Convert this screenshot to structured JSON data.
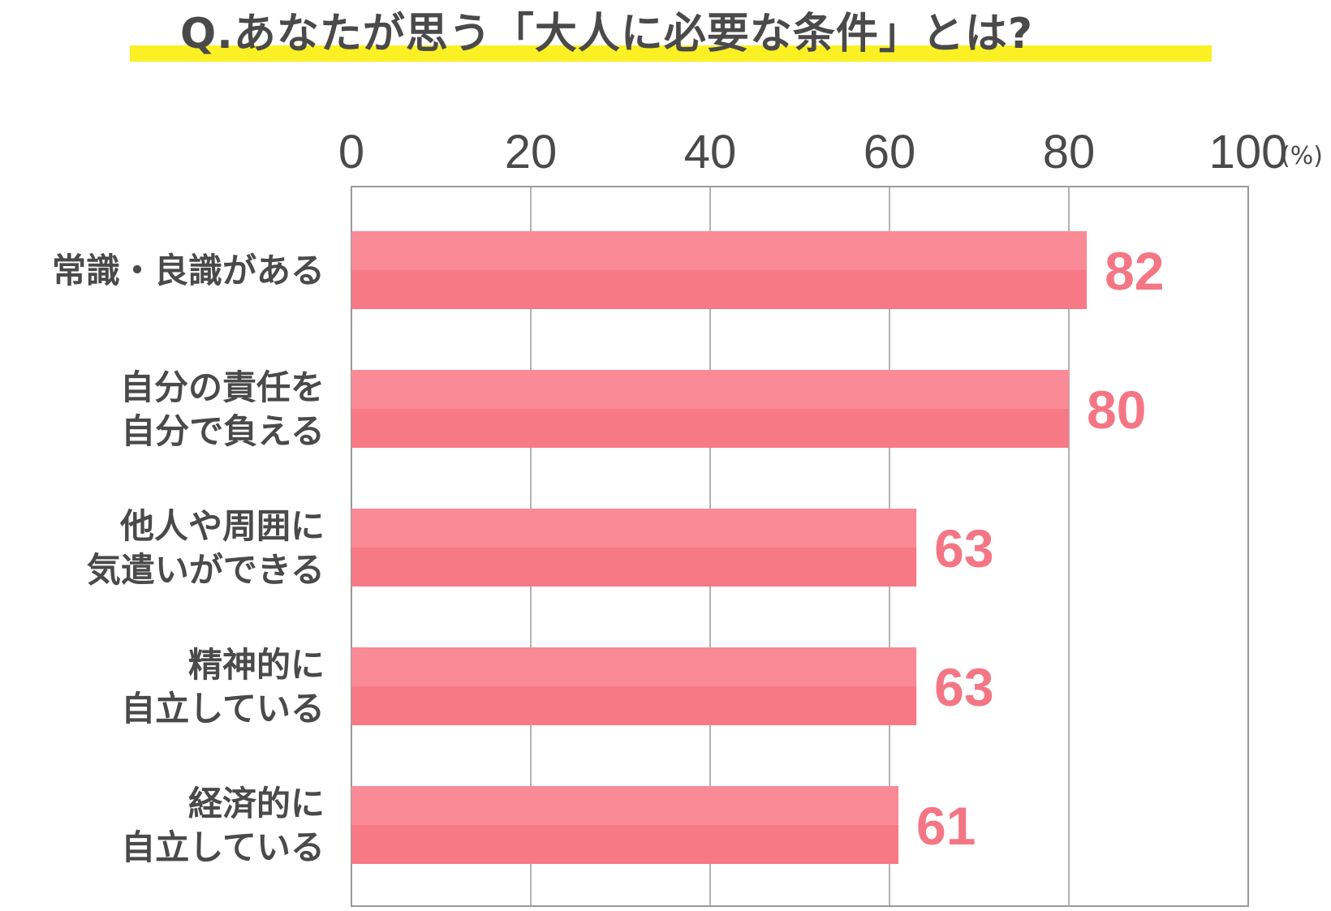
{
  "chart_data": {
    "type": "bar",
    "orientation": "horizontal",
    "title": "Q.あなたが思う「大人に必要な条件」とは?",
    "unit": "(%)",
    "xlim": [
      0,
      100
    ],
    "ticks": [
      "0",
      "20",
      "40",
      "60",
      "80",
      "100"
    ],
    "grid": true,
    "categories": [
      [
        "常識・良識がある"
      ],
      [
        "自分の責任を",
        "自分で負える"
      ],
      [
        "他人や周囲に",
        "気遣いができる"
      ],
      [
        "精神的に",
        "自立している"
      ],
      [
        "経済的に",
        "自立している"
      ]
    ],
    "values": [
      82,
      80,
      63,
      63,
      61
    ],
    "data_labels": [
      "82",
      "80",
      "63",
      "63",
      "61"
    ],
    "colors": {
      "bar_top": "#fa8a95",
      "bar_bottom": "#f77985",
      "value_text": "#f47685",
      "grid": "#9a9a9a",
      "text": "#4a4a4a",
      "title_highlight": "#fbf023"
    }
  }
}
